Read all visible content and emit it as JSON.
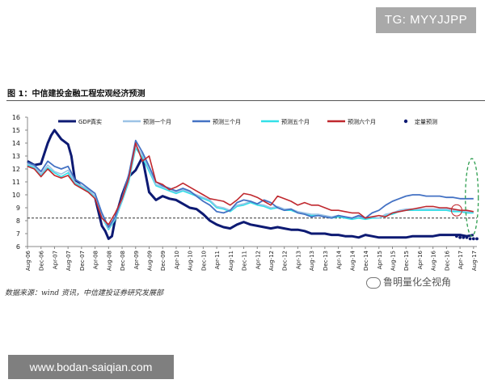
{
  "watermark_top": "TG: MYYJJPP",
  "watermark_bottom": "www.bodan-saiqian.com",
  "watermark_brand": "鲁明量化全视角",
  "figure_title": "图 1：中信建投金融工程宏观经济预测",
  "source": "数据来源：wind 资讯，中信建投证券研究发展部",
  "colors": {
    "gdp": "#0d1a73",
    "one_month": "#9cc3e6",
    "three_month": "#4472c4",
    "five_month": "#33e0e8",
    "six_month": "#c0282e",
    "quant": "#0d1a73",
    "ref_line": "#333333",
    "annotation": "#2e9e4f"
  },
  "chart_data": {
    "type": "line",
    "title": "",
    "xlabel": "",
    "ylabel": "",
    "ylim": [
      6,
      16
    ],
    "yticks": [
      6,
      7,
      8,
      9,
      10,
      11,
      12,
      13,
      14,
      15,
      16
    ],
    "grid": false,
    "legend_position": "top",
    "x_tick_labels": [
      "Aug-06",
      "Dec-06",
      "Apr-07",
      "Aug-07",
      "Dec-07",
      "Apr-08",
      "Aug-08",
      "Dec-08",
      "Apr-09",
      "Aug-09",
      "Dec-09",
      "Apr-10",
      "Aug-10",
      "Dec-10",
      "Apr-11",
      "Aug-11",
      "Dec-11",
      "Apr-12",
      "Aug-12",
      "Dec-12",
      "Apr-13",
      "Aug-13",
      "Dec-13",
      "Apr-14",
      "Aug-14",
      "Dec-14",
      "Apr-15",
      "Aug-15",
      "Dec-15",
      "Apr-16",
      "Aug-16",
      "Dec-16",
      "Apr-17",
      "Aug-17"
    ],
    "reference_line": {
      "y": 8.2,
      "style": "dashed"
    },
    "series": [
      {
        "name": "GDP真实",
        "key": "gdp",
        "x": [
          0,
          2,
          4,
          6,
          7,
          8,
          10,
          12,
          13,
          14,
          16,
          18,
          20,
          22,
          23,
          24,
          25,
          26,
          28,
          30,
          32,
          34,
          36,
          38,
          40,
          42,
          44,
          46,
          48,
          50,
          52,
          54,
          56,
          58,
          60,
          62,
          64,
          66,
          68,
          70,
          72,
          74,
          76,
          78,
          80,
          82,
          84,
          86,
          88,
          90,
          92,
          94,
          96,
          98,
          100,
          102,
          104,
          106,
          108,
          110,
          112,
          114,
          116,
          118,
          120,
          122,
          124,
          126,
          128,
          130,
          132
        ],
        "values": [
          12.6,
          12.3,
          12.4,
          14.0,
          14.6,
          15.0,
          14.3,
          13.9,
          13.0,
          11.2,
          10.6,
          10.3,
          9.8,
          7.6,
          7.2,
          6.6,
          6.8,
          8.2,
          10.0,
          11.4,
          11.9,
          12.9,
          10.2,
          9.6,
          9.9,
          9.7,
          9.6,
          9.3,
          9.0,
          8.9,
          8.5,
          8.0,
          7.7,
          7.5,
          7.4,
          7.7,
          7.9,
          7.7,
          7.6,
          7.5,
          7.4,
          7.5,
          7.4,
          7.3,
          7.3,
          7.2,
          7.0,
          7.0,
          7.0,
          6.9,
          6.9,
          6.8,
          6.8,
          6.7,
          6.9,
          6.8,
          6.7,
          6.7,
          6.7,
          6.7,
          6.7,
          6.8,
          6.8,
          6.8,
          6.8,
          6.9,
          6.9,
          6.9,
          6.9,
          6.8,
          6.9
        ]
      },
      {
        "name": "预测一个月",
        "key": "one_month",
        "x": [
          0,
          2,
          4,
          6,
          8,
          10,
          12,
          14,
          16,
          18,
          20,
          22,
          24,
          26,
          28,
          30,
          32,
          34,
          36,
          38,
          40,
          42,
          44,
          46,
          48,
          50,
          52,
          54,
          56,
          58,
          60,
          62,
          64,
          66,
          68,
          70,
          72,
          74,
          76,
          78,
          80,
          82,
          84,
          86,
          88,
          90,
          92,
          94,
          96,
          98,
          100,
          102,
          104,
          106,
          108,
          110,
          112,
          114,
          116,
          118,
          120,
          122,
          124,
          126,
          128,
          130,
          132
        ],
        "values": [
          12.4,
          12.2,
          11.6,
          12.3,
          11.8,
          11.6,
          11.9,
          11.0,
          10.7,
          10.4,
          9.9,
          8.4,
          7.4,
          8.2,
          9.6,
          11.2,
          13.8,
          13.1,
          12.0,
          10.8,
          10.6,
          10.4,
          10.2,
          10.4,
          10.2,
          10.0,
          9.8,
          9.6,
          9.1,
          9.0,
          8.8,
          9.2,
          9.3,
          9.5,
          9.3,
          9.2,
          9.0,
          9.1,
          8.9,
          8.9,
          8.7,
          8.6,
          8.5,
          8.5,
          8.4,
          8.3,
          8.4,
          8.3,
          8.2,
          8.3,
          8.2,
          8.3,
          8.2,
          8.5,
          8.6,
          8.8,
          8.9,
          8.9,
          8.9,
          8.9,
          8.9,
          8.9,
          8.9,
          8.8,
          8.8,
          8.7,
          8.7
        ]
      },
      {
        "name": "预测三个月",
        "key": "three_month",
        "x": [
          0,
          2,
          4,
          6,
          8,
          10,
          12,
          14,
          16,
          18,
          20,
          22,
          24,
          26,
          28,
          30,
          32,
          34,
          36,
          38,
          40,
          42,
          44,
          46,
          48,
          50,
          52,
          54,
          56,
          58,
          60,
          62,
          64,
          66,
          68,
          70,
          72,
          74,
          76,
          78,
          80,
          82,
          84,
          86,
          88,
          90,
          92,
          94,
          96,
          98,
          100,
          102,
          104,
          106,
          108,
          110,
          112,
          114,
          116,
          118,
          120,
          122,
          124,
          126,
          128,
          130,
          132
        ],
        "values": [
          12.5,
          12.3,
          11.8,
          12.6,
          12.2,
          12.0,
          12.2,
          11.2,
          10.9,
          10.5,
          10.1,
          8.6,
          7.5,
          8.3,
          9.8,
          11.6,
          14.2,
          13.3,
          12.2,
          11.0,
          10.7,
          10.5,
          10.3,
          10.5,
          10.3,
          9.9,
          9.5,
          9.2,
          8.7,
          8.6,
          8.8,
          9.4,
          9.6,
          9.5,
          9.3,
          9.6,
          9.4,
          9.0,
          8.8,
          8.9,
          8.6,
          8.5,
          8.3,
          8.4,
          8.3,
          8.2,
          8.4,
          8.3,
          8.2,
          8.4,
          8.2,
          8.6,
          8.8,
          9.2,
          9.5,
          9.7,
          9.9,
          10.0,
          10.0,
          9.9,
          9.9,
          9.9,
          9.8,
          9.8,
          9.7,
          9.7,
          9.7
        ]
      },
      {
        "name": "预测五个月",
        "key": "five_month",
        "x": [
          0,
          2,
          4,
          6,
          8,
          10,
          12,
          14,
          16,
          18,
          20,
          22,
          24,
          26,
          28,
          30,
          32,
          34,
          36,
          38,
          40,
          42,
          44,
          46,
          48,
          50,
          52,
          54,
          56,
          58,
          60,
          62,
          64,
          66,
          68,
          70,
          72,
          74,
          76,
          78,
          80,
          82,
          84,
          86,
          88,
          90,
          92,
          94,
          96,
          98,
          100,
          102,
          104,
          106,
          108,
          110,
          112,
          114,
          116,
          118,
          120,
          122,
          124,
          126,
          128,
          130,
          132
        ],
        "values": [
          12.3,
          12.1,
          11.5,
          12.1,
          11.7,
          11.4,
          11.7,
          10.9,
          10.6,
          10.3,
          9.8,
          8.3,
          7.3,
          8.1,
          9.5,
          11.0,
          13.6,
          12.9,
          11.8,
          10.7,
          10.5,
          10.3,
          10.1,
          10.3,
          10.1,
          9.9,
          9.7,
          9.5,
          9.0,
          8.9,
          8.7,
          9.1,
          9.2,
          9.4,
          9.2,
          9.1,
          8.9,
          9.0,
          8.8,
          8.8,
          8.6,
          8.5,
          8.4,
          8.4,
          8.3,
          8.2,
          8.3,
          8.2,
          8.1,
          8.2,
          8.1,
          8.2,
          8.2,
          8.4,
          8.5,
          8.7,
          8.8,
          8.8,
          8.8,
          8.8,
          8.8,
          8.8,
          8.8,
          8.7,
          8.7,
          8.6,
          8.6
        ]
      },
      {
        "name": "预测六个月",
        "key": "six_month",
        "x": [
          0,
          2,
          4,
          6,
          8,
          10,
          12,
          14,
          16,
          18,
          20,
          22,
          24,
          26,
          28,
          30,
          32,
          34,
          36,
          38,
          40,
          42,
          44,
          46,
          48,
          50,
          52,
          54,
          56,
          58,
          60,
          62,
          64,
          66,
          68,
          70,
          72,
          74,
          76,
          78,
          80,
          82,
          84,
          86,
          88,
          90,
          92,
          94,
          96,
          98,
          100,
          102,
          104,
          106,
          108,
          110,
          112,
          114,
          116,
          118,
          120,
          122,
          124,
          126,
          128,
          130,
          132
        ],
        "values": [
          12.2,
          12.0,
          11.4,
          12.0,
          11.5,
          11.3,
          11.5,
          10.8,
          10.5,
          10.2,
          9.7,
          8.2,
          7.7,
          8.6,
          9.7,
          11.3,
          14.0,
          12.6,
          13.0,
          11.0,
          10.8,
          10.4,
          10.6,
          10.9,
          10.6,
          10.3,
          10.0,
          9.7,
          9.6,
          9.5,
          9.2,
          9.6,
          10.1,
          10.0,
          9.8,
          9.5,
          9.2,
          9.9,
          9.7,
          9.5,
          9.2,
          9.4,
          9.2,
          9.2,
          9.0,
          8.8,
          8.8,
          8.7,
          8.6,
          8.6,
          8.2,
          8.3,
          8.4,
          8.3,
          8.6,
          8.7,
          8.8,
          8.9,
          9.0,
          9.1,
          9.1,
          9.0,
          9.0,
          8.9,
          8.8,
          8.8,
          8.7
        ]
      },
      {
        "name": "定量预测",
        "key": "quant",
        "x": [
          127,
          128,
          129,
          130,
          131,
          132,
          133
        ],
        "values": [
          6.8,
          6.7,
          6.7,
          6.7,
          6.6,
          6.6,
          6.6
        ]
      }
    ]
  }
}
